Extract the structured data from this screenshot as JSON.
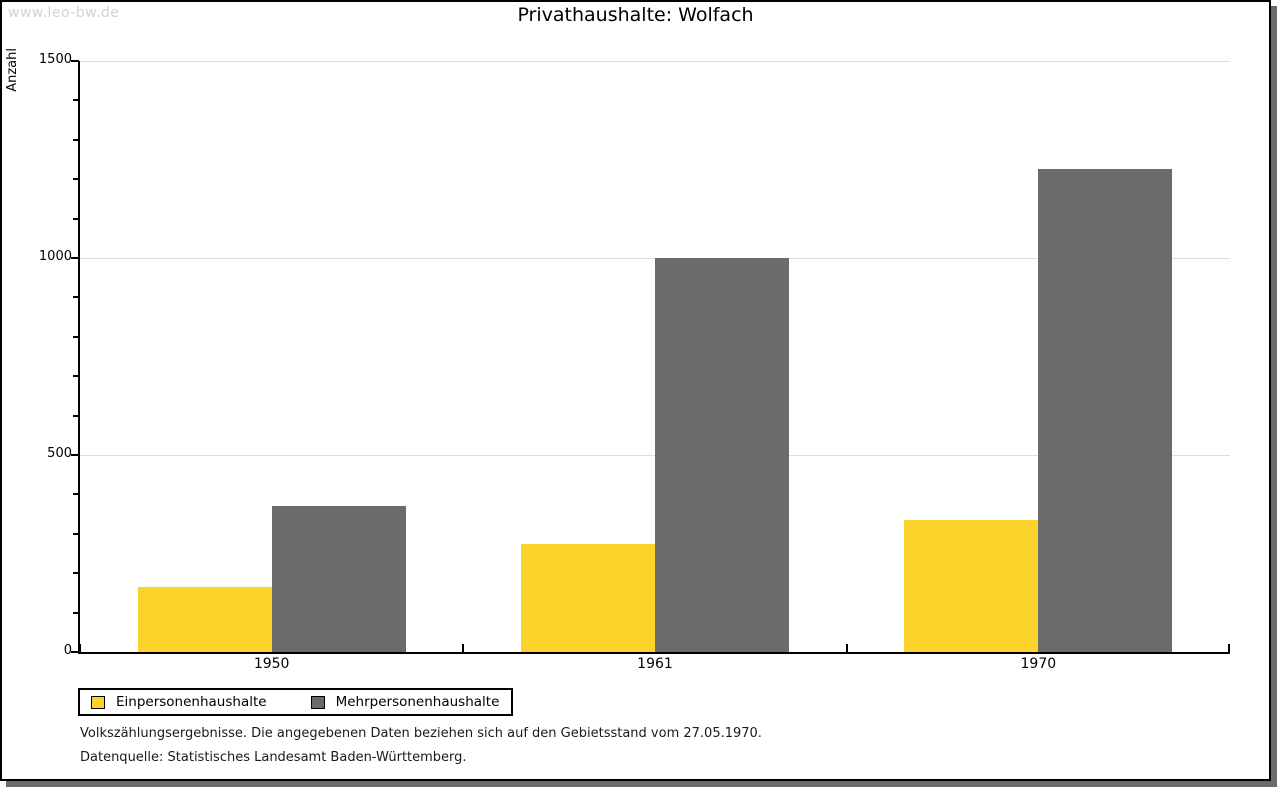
{
  "watermark": "www.leo-bw.de",
  "title": "Privathaushalte: Wolfach",
  "chart_data": {
    "type": "bar",
    "title": "Privathaushalte: Wolfach",
    "categories": [
      "1950",
      "1961",
      "1970"
    ],
    "series": [
      {
        "name": "Einpersonenhaushalte",
        "color": "#FCD32B",
        "values": [
          165,
          275,
          335
        ]
      },
      {
        "name": "Mehrpersonenhaushalte",
        "color": "#6B6B6B",
        "values": [
          370,
          1000,
          1225
        ]
      }
    ],
    "xlabel": "",
    "ylabel": "Anzahl",
    "ylim": [
      0,
      1500
    ],
    "yticks": [
      0,
      500,
      1000,
      1500
    ],
    "minor_tick_step": 100,
    "grid": true,
    "legend_position": "bottom-left"
  },
  "footer": {
    "line1": "Volkszählungsergebnisse. Die angegebenen Daten beziehen sich auf den Gebietsstand vom 27.05.1970.",
    "line2": "Datenquelle: Statistisches Landesamt Baden-Württemberg."
  }
}
